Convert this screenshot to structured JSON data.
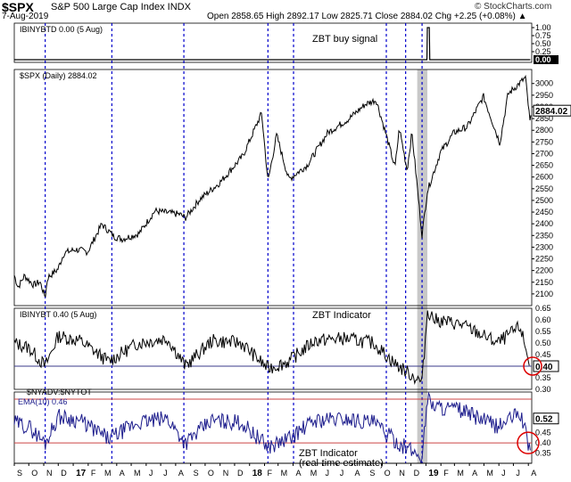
{
  "header": {
    "ticker": "$SPX",
    "ticker_name": "S&P 500 Large Cap Index  INDX",
    "date": "7-Aug-2019",
    "ohlc": "Open 2858.65  High 2892.17  Low 2825.71  Close 2884.02  Chg +2.25 (+0.08%) ▲",
    "credit": "© StockCharts.com"
  },
  "chart_data": [
    {
      "type": "line",
      "title": "ZBT buy signal",
      "legend": "IBINYBTD 0.00 (5 Aug)",
      "yticks": [
        "1.00",
        "0.75",
        "0.50",
        "0.25"
      ],
      "ylim": [
        0,
        1
      ],
      "last_value_label": "0.00",
      "series": [
        {
          "name": "IBINYBTD",
          "x": [
            "2016-09-01",
            "2019-01-03",
            "2019-01-04",
            "2019-01-08",
            "2019-01-09",
            "2019-08-05"
          ],
          "values": [
            0,
            0,
            1,
            1,
            0,
            0
          ]
        }
      ],
      "color": "#000000"
    },
    {
      "type": "line",
      "legend": "$SPX (Daily) 2884.02",
      "ylim": [
        2050,
        3060
      ],
      "yticks": [
        2100,
        2150,
        2200,
        2250,
        2300,
        2350,
        2400,
        2450,
        2500,
        2550,
        2600,
        2650,
        2700,
        2750,
        2800,
        2850,
        2900,
        2950,
        3000
      ],
      "last_value_label": "2884.02",
      "series": [
        {
          "name": "$SPX",
          "x": [
            "2016-09-01",
            "2016-09-09",
            "2016-09-22",
            "2016-10-11",
            "2016-10-24",
            "2016-11-04",
            "2016-11-09",
            "2016-11-30",
            "2016-12-13",
            "2017-01-06",
            "2017-01-31",
            "2017-03-01",
            "2017-03-27",
            "2017-04-13",
            "2017-05-17",
            "2017-06-19",
            "2017-08-10",
            "2017-08-21",
            "2017-09-20",
            "2017-10-31",
            "2017-12-18",
            "2018-01-26",
            "2018-02-08",
            "2018-02-26",
            "2018-03-23",
            "2018-04-30",
            "2018-06-12",
            "2018-07-25",
            "2018-08-29",
            "2018-09-20",
            "2018-10-10",
            "2018-10-29",
            "2018-11-07",
            "2018-11-23",
            "2018-12-03",
            "2018-12-24",
            "2019-01-04",
            "2019-01-31",
            "2019-02-28",
            "2019-03-28",
            "2019-04-30",
            "2019-06-03",
            "2019-06-20",
            "2019-07-26",
            "2019-08-05",
            "2019-08-07"
          ],
          "values": [
            2180,
            2128,
            2178,
            2138,
            2152,
            2086,
            2170,
            2205,
            2275,
            2290,
            2280,
            2398,
            2345,
            2335,
            2358,
            2455,
            2440,
            2425,
            2505,
            2575,
            2690,
            2873,
            2580,
            2780,
            2590,
            2650,
            2790,
            2848,
            2912,
            2930,
            2785,
            2640,
            2810,
            2630,
            2790,
            2350,
            2540,
            2705,
            2790,
            2815,
            2945,
            2745,
            2955,
            3025,
            2822,
            2884
          ]
        }
      ],
      "color": "#000000"
    },
    {
      "type": "line",
      "title": "ZBT Indicator",
      "legend": "IBINYBT 0.40 (5 Aug)",
      "ylim": [
        0.3,
        0.65
      ],
      "yticks": [
        "0.65",
        "0.60",
        "0.55",
        "0.50",
        "0.45",
        "0.35",
        "0.30"
      ],
      "last_value_label": "0.40",
      "reference_line": 0.4,
      "series": [
        {
          "name": "IBINYBT",
          "x": [
            "2016-09-01",
            "2016-10-01",
            "2016-11-04",
            "2016-12-01",
            "2017-01-15",
            "2017-03-15",
            "2017-05-15",
            "2017-07-15",
            "2017-08-21",
            "2017-10-15",
            "2017-12-15",
            "2018-02-08",
            "2018-03-23",
            "2018-05-15",
            "2018-07-15",
            "2018-09-15",
            "2018-10-29",
            "2018-12-24",
            "2019-01-04",
            "2019-01-20",
            "2019-03-15",
            "2019-05-30",
            "2019-07-15",
            "2019-08-05"
          ],
          "values": [
            0.5,
            0.48,
            0.4,
            0.53,
            0.51,
            0.42,
            0.5,
            0.52,
            0.4,
            0.51,
            0.5,
            0.39,
            0.42,
            0.51,
            0.52,
            0.5,
            0.41,
            0.33,
            0.64,
            0.6,
            0.58,
            0.5,
            0.57,
            0.4
          ]
        }
      ],
      "color": "#000000"
    },
    {
      "type": "line",
      "title": "ZBT Indicator (real-time estimate)",
      "legend": [
        "$NYADV:$NYTOT",
        "EMA(10) 0.46"
      ],
      "ylim": [
        0.3,
        0.65
      ],
      "yticks": [
        "0.52",
        "0.45",
        "0.40",
        "0.35"
      ],
      "last_value_label": "0.52",
      "reference_lines": [
        0.615,
        0.4
      ],
      "series": [
        {
          "name": "EMA(10)",
          "x": [
            "2016-09-01",
            "2016-10-01",
            "2016-11-04",
            "2016-12-01",
            "2017-01-15",
            "2017-03-15",
            "2017-05-15",
            "2017-07-15",
            "2017-08-21",
            "2017-10-15",
            "2017-12-15",
            "2018-02-08",
            "2018-03-23",
            "2018-05-15",
            "2018-07-15",
            "2018-09-15",
            "2018-10-29",
            "2018-12-24",
            "2019-01-04",
            "2019-01-20",
            "2019-03-15",
            "2019-05-30",
            "2019-07-15",
            "2019-08-05",
            "2019-08-07"
          ],
          "values": [
            0.5,
            0.48,
            0.4,
            0.53,
            0.51,
            0.42,
            0.5,
            0.52,
            0.4,
            0.51,
            0.5,
            0.38,
            0.42,
            0.51,
            0.52,
            0.5,
            0.41,
            0.33,
            0.62,
            0.58,
            0.56,
            0.48,
            0.55,
            0.36,
            0.46
          ]
        }
      ],
      "color": "#1c1c8c"
    }
  ],
  "x_axis": {
    "labels": [
      "S",
      "O",
      "N",
      "D",
      "17",
      "F",
      "M",
      "A",
      "M",
      "J",
      "J",
      "A",
      "S",
      "O",
      "N",
      "D",
      "18",
      "F",
      "M",
      "A",
      "M",
      "J",
      "J",
      "A",
      "S",
      "O",
      "N",
      "D",
      "19",
      "F",
      "M",
      "A",
      "M",
      "J",
      "J",
      "A"
    ],
    "dates": [
      "2016-09-01",
      "2016-10-01",
      "2016-11-01",
      "2016-12-01",
      "2017-01-01",
      "2017-02-01",
      "2017-03-01",
      "2017-04-01",
      "2017-05-01",
      "2017-06-01",
      "2017-07-01",
      "2017-08-01",
      "2017-09-01",
      "2017-10-01",
      "2017-11-01",
      "2017-12-01",
      "2018-01-01",
      "2018-02-01",
      "2018-03-01",
      "2018-04-01",
      "2018-05-01",
      "2018-06-01",
      "2018-07-01",
      "2018-08-01",
      "2018-09-01",
      "2018-10-01",
      "2018-11-01",
      "2018-12-01",
      "2019-01-01",
      "2019-02-01",
      "2019-03-01",
      "2019-04-01",
      "2019-05-01",
      "2019-06-01",
      "2019-07-01",
      "2019-08-01"
    ],
    "range": [
      "2016-09-01",
      "2019-08-08"
    ]
  },
  "signal_dates": [
    "2016-11-04",
    "2017-03-22",
    "2017-08-18",
    "2018-02-08",
    "2018-04-02",
    "2018-10-11",
    "2018-11-20",
    "2018-12-24"
  ],
  "highlight_band": [
    "2018-12-14",
    "2019-01-04"
  ],
  "colors": {
    "signal_line": "#0000cc",
    "shade": "#c8c8c8",
    "reference": "#cc4444",
    "circle": "#dd0000"
  }
}
